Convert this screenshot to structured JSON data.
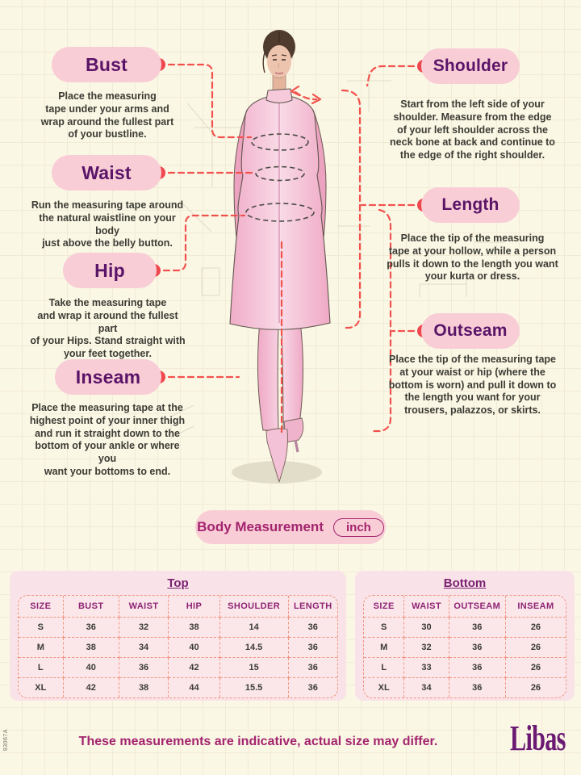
{
  "page": {
    "footer_note": "These measurements are indicative, actual size may differ.",
    "brand": "Libas",
    "side_code": "93067A"
  },
  "measurement_banner": {
    "label": "Body Measurement",
    "unit": "inch"
  },
  "callouts": {
    "bust": {
      "title": "Bust",
      "desc": "Place the measuring\ntape under your arms and\nwrap around the fullest part\nof your bustline."
    },
    "waist": {
      "title": "Waist",
      "desc": "Run the measuring tape around\nthe natural waistline on your body\njust above the belly button."
    },
    "hip": {
      "title": "Hip",
      "desc": "Take the measuring tape\nand wrap it around the fullest part\nof your Hips. Stand straight with\nyour feet together."
    },
    "inseam": {
      "title": "Inseam",
      "desc": "Place the measuring tape at the\nhighest point of your inner thigh\nand run it straight down to the\nbottom of your ankle or where you\nwant your bottoms to end."
    },
    "shoulder": {
      "title": "Shoulder",
      "desc": "Start from the left side of your\nshoulder. Measure from the edge\nof your left shoulder across the\nneck bone at back and continue to\nthe edge of the right shoulder."
    },
    "length": {
      "title": "Length",
      "desc": "Place the tip of the measuring\ntape at your hollow, while a person\npulls it down to the length you want\nyour kurta or dress."
    },
    "outseam": {
      "title": "Outseam",
      "desc": "Place the tip of the measuring tape\nat your waist or hip (where the\nbottom is worn) and pull it down to\nthe length you want for your\ntrousers, palazzos, or skirts."
    }
  },
  "tables": {
    "top": {
      "title": "Top",
      "headers": [
        "SIZE",
        "BUST",
        "WAIST",
        "HIP",
        "SHOULDER",
        "LENGTH"
      ],
      "rows": [
        [
          "S",
          "36",
          "32",
          "38",
          "14",
          "36"
        ],
        [
          "M",
          "38",
          "34",
          "40",
          "14.5",
          "36"
        ],
        [
          "L",
          "40",
          "36",
          "42",
          "15",
          "36"
        ],
        [
          "XL",
          "42",
          "38",
          "44",
          "15.5",
          "36"
        ]
      ]
    },
    "bottom": {
      "title": "Bottom",
      "headers": [
        "SIZE",
        "WAIST",
        "OUTSEAM",
        "INSEAM"
      ],
      "rows": [
        [
          "S",
          "30",
          "36",
          "26"
        ],
        [
          "M",
          "32",
          "36",
          "26"
        ],
        [
          "L",
          "33",
          "36",
          "26"
        ],
        [
          "XL",
          "34",
          "36",
          "26"
        ]
      ]
    }
  },
  "colors": {
    "background_cream": "#FBF7E5",
    "pill_pink": "#F8CDD6",
    "deep_purple": "#5A1468",
    "magenta": "#A3246E",
    "coral_red": "#F2524E",
    "table_panel_pink": "#FAE3E8",
    "dash_salmon": "#F2947F",
    "brand_purple": "#6B1A73"
  }
}
